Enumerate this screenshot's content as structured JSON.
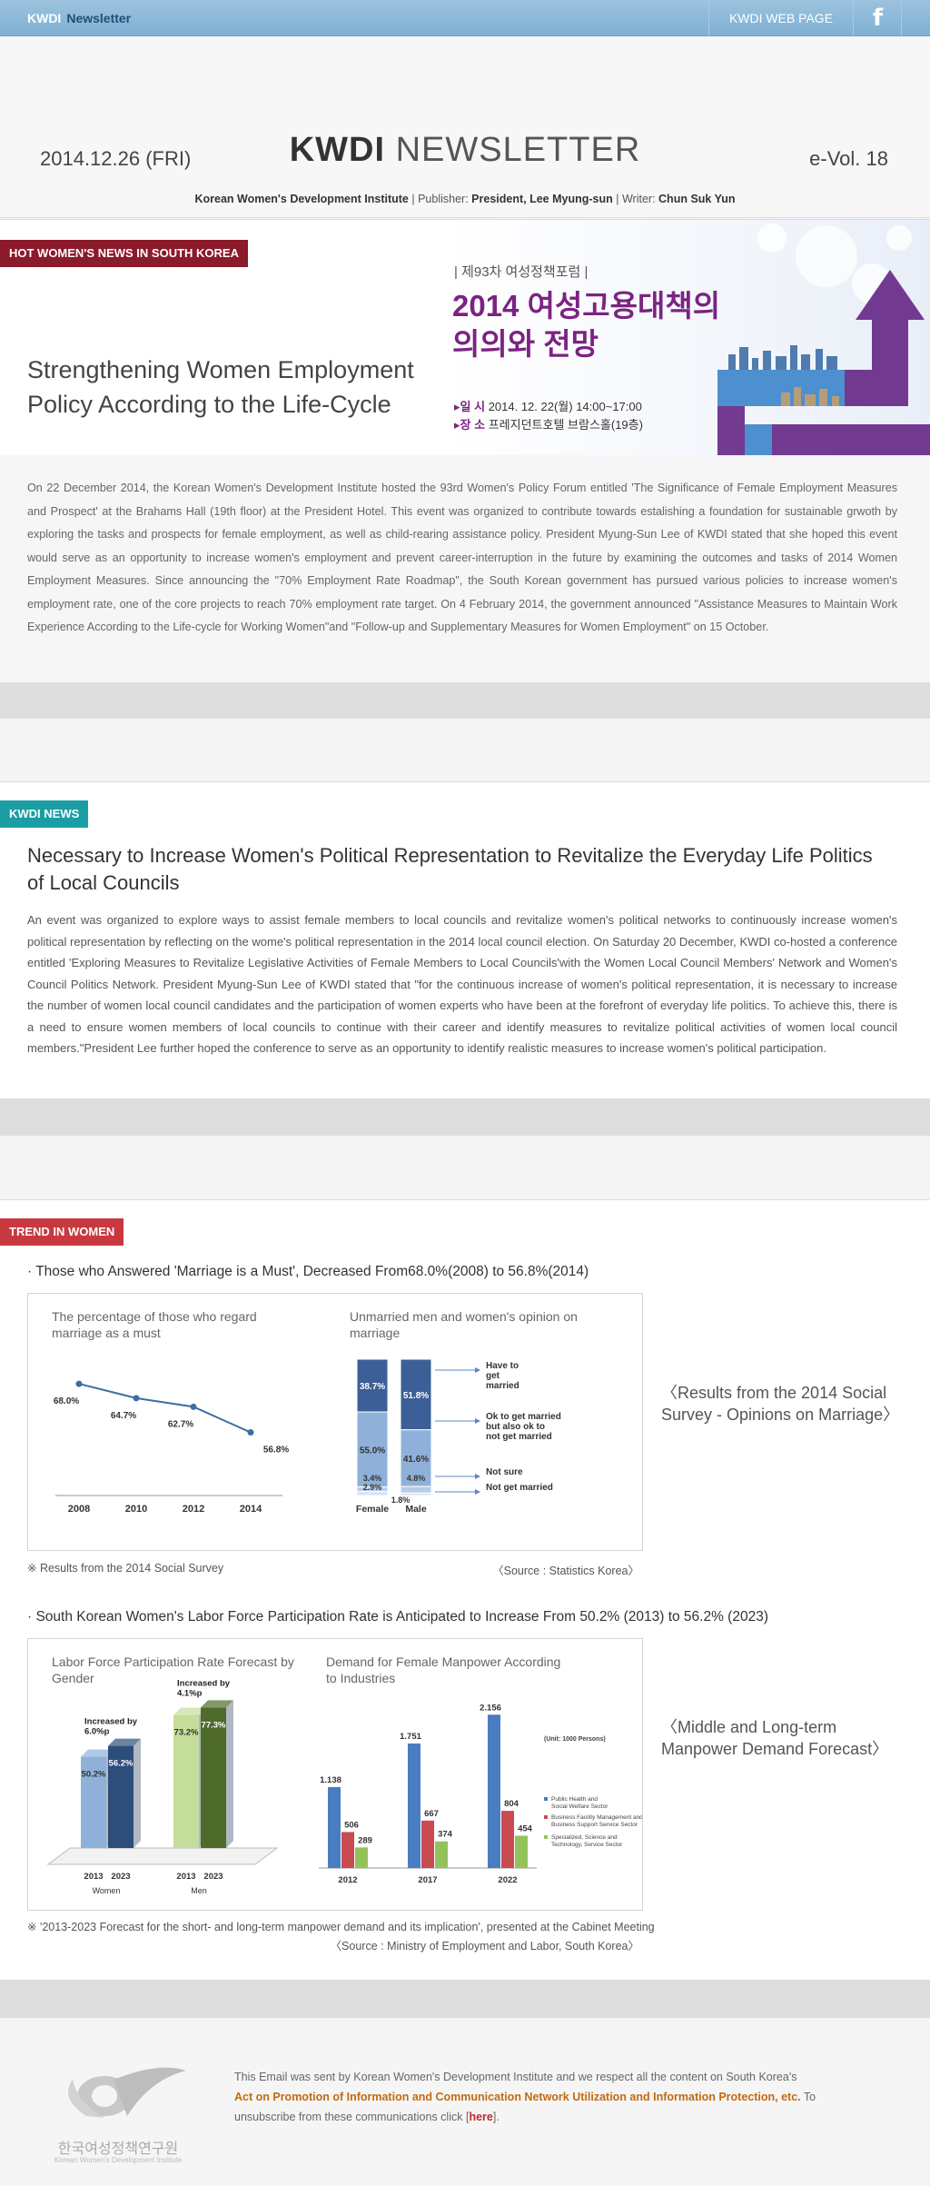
{
  "topbar": {
    "brand_kwdi": "KWDI",
    "brand_newsletter": "Newsletter",
    "web_page_label": "KWDI WEB PAGE",
    "facebook_glyph": "f"
  },
  "header": {
    "date": "2014.12.26 (FRI)",
    "title_bold": "KWDI",
    "title_light": "NEWSLETTER",
    "volume": "e-Vol. 18",
    "institute": "Korean Women's Development Institute",
    "publisher_label": "Publisher:",
    "publisher": "President, Lee Myung-sun",
    "writer_label": "Writer:",
    "writer": "Chun Suk Yun"
  },
  "hot_news": {
    "tag": "HOT WOMEN'S NEWS IN SOUTH KOREA",
    "tag_color": "#8b1a2b",
    "title_line1": "Strengthening Women Employment",
    "title_line2": "Policy According to the Life-Cycle",
    "banner": {
      "forum": "| 제93차 여성정책포럼 |",
      "title_line1": "2014 여성고용대책의",
      "title_line2": "의의와 전망",
      "date_label": "▸일 시",
      "date_value": "2014. 12. 22(월) 14:00~17:00",
      "place_label": "▸장 소",
      "place_value": "프레지던트호텔 브람스홀(19층)"
    },
    "body": "On 22 December 2014, the Korean Women's Development Institute hosted the 93rd Women's Policy Forum entitled 'The Significance of Female Employment Measures and Prospect' at the Brahams Hall (19th floor) at the President Hotel. This event was organized to contribute towards estalishing a foundation for sustainable grwoth by exploring the tasks and prospects for female employment, as well as child-rearing assistance policy. President Myung-Sun Lee of KWDI stated that she hoped this event would serve as an opportunity to increase women's employment and prevent career-interruption in the future by examining the outcomes and tasks of 2014 Women Employment Measures. Since announcing the \"70% Employment Rate Roadmap\", the South Korean government has pursued various policies to increase women's employment rate, one of the core projects to reach 70% employment rate target. On 4 February 2014, the government announced \"Assistance Measures to Maintain Work Experience According to the Life-cycle for Working Women\"and \"Follow-up and Supplementary Measures for Women Employment\" on 15 October."
  },
  "kwdi_news": {
    "tag": "KWDI NEWS",
    "tag_color": "#1a9ea3",
    "title": "Necessary to Increase Women's Political Representation to Revitalize the Everyday Life Politics of Local Councils",
    "body": "An event was organized to explore ways to assist female members to local councils and revitalize women's political networks to continuously increase women's political representation by reflecting on the wome's political representation in the 2014 local council election. On Saturday 20 December, KWDI co-hosted a conference entitled 'Exploring Measures to Revitalize Legislative Activities of Female Members to Local Councils'with the Women Local Council Members' Network and Women's Council Politics Network. President Myung-Sun Lee of KWDI stated that \"for the continuous increase of women's political representation, it is necessary to increase the number of women local council candidates and the participation of women experts who have been at the forefront of everyday life politics. To achieve this, there is a need to ensure women members of local councils to continue with their career and identify measures to revitalize political activities of women local council members.\"President Lee further hoped the conference to serve as an opportunity to identify realistic measures to increase women's political participation."
  },
  "trend": {
    "tag": "TREND IN WOMEN",
    "tag_color": "#c8393f",
    "heading1": "· Those who Answered 'Marriage is a Must', Decreased From68.0%(2008) to 56.8%(2014)",
    "caption1": "〈Results from the 2014 Social Survey - Opinions on Marriage〉",
    "note1_left": "※ Results from the 2014 Social Survey",
    "note1_right": "〈Source : Statistics Korea〉",
    "heading2": "· South Korean Women's Labor Force Participation Rate is Anticipated to Increase From 50.2% (2013) to 56.2% (2023)",
    "caption2": "〈Middle and Long-term Manpower Demand Forecast〉",
    "note2_left": "※ '2013-2023 Forecast for the short- and long-term manpower demand and its implication', presented at the Cabinet Meeting",
    "note2_right": "〈Source : Ministry of Employment and Labor, South Korea〉"
  },
  "chart_data": [
    {
      "type": "line",
      "title": "The percentage of those who regard marriage as a must",
      "x": [
        2008,
        2010,
        2012,
        2014
      ],
      "series": [
        {
          "name": "",
          "values": [
            68.0,
            64.7,
            62.7,
            56.8
          ]
        }
      ],
      "value_labels": [
        "68.0%",
        "64.7%",
        "62.7%",
        "56.8%"
      ],
      "color": "#3d6ea3"
    },
    {
      "type": "bar",
      "stacked": true,
      "title": "Unmarried men and women's opinion on marriage",
      "categories": [
        "Female",
        "Male"
      ],
      "series": [
        {
          "name": "Have to get married",
          "values": [
            38.7,
            51.8
          ],
          "color": "#3b5f96"
        },
        {
          "name": "Ok to get married but also ok to not get married",
          "values": [
            55.0,
            41.6
          ],
          "color": "#8fb1d9"
        },
        {
          "name": "Not sure",
          "values": [
            3.4,
            4.8
          ],
          "color": "#b6cde8"
        },
        {
          "name": "Not get married",
          "values": [
            2.9,
            1.8
          ],
          "color": "#d7e3f2"
        }
      ]
    },
    {
      "type": "bar",
      "title": "Labor Force Participation Rate Forecast by Gender",
      "groups": [
        {
          "name": "Women",
          "categories": [
            "2013",
            "2023"
          ],
          "values": [
            50.2,
            56.2
          ],
          "colors": [
            "#8fb1d9",
            "#2d4e7a"
          ],
          "increase": "Increased by 6.0%p"
        },
        {
          "name": "Men",
          "categories": [
            "2013",
            "2023"
          ],
          "values": [
            73.2,
            77.3
          ],
          "colors": [
            "#c4dd9a",
            "#4f6b2a"
          ],
          "increase": "Increased by 4.1%p"
        }
      ]
    },
    {
      "type": "bar",
      "title": "Demand for Female Manpower According to Industries",
      "unit": "(Unit: 1000 Persons)",
      "categories": [
        "2012",
        "2017",
        "2022"
      ],
      "series": [
        {
          "name": "Public Health and Social Welfare Sector",
          "values": [
            1138,
            1751,
            2156
          ],
          "color": "#4a7cc2"
        },
        {
          "name": "Business Facility Management and Business Support Service Sector",
          "values": [
            506,
            667,
            804
          ],
          "color": "#c94a4f"
        },
        {
          "name": "Specialized, Science and Technology, Service Sector",
          "values": [
            289,
            374,
            454
          ],
          "color": "#93c25a"
        }
      ]
    }
  ],
  "footer": {
    "logo_text": "한국여성정책연구원",
    "logo_sub": "Korean Women's Development Institute",
    "line1": "This Email was sent by Korean Women's Development Institute and we respect all the content on South Korea's",
    "act": "Act on Promotion of Information and Communication Network Utilization and Information Protection, etc.",
    "line3": "To unsubscribe from these communications click [",
    "here": "here",
    "line3_end": "]."
  }
}
